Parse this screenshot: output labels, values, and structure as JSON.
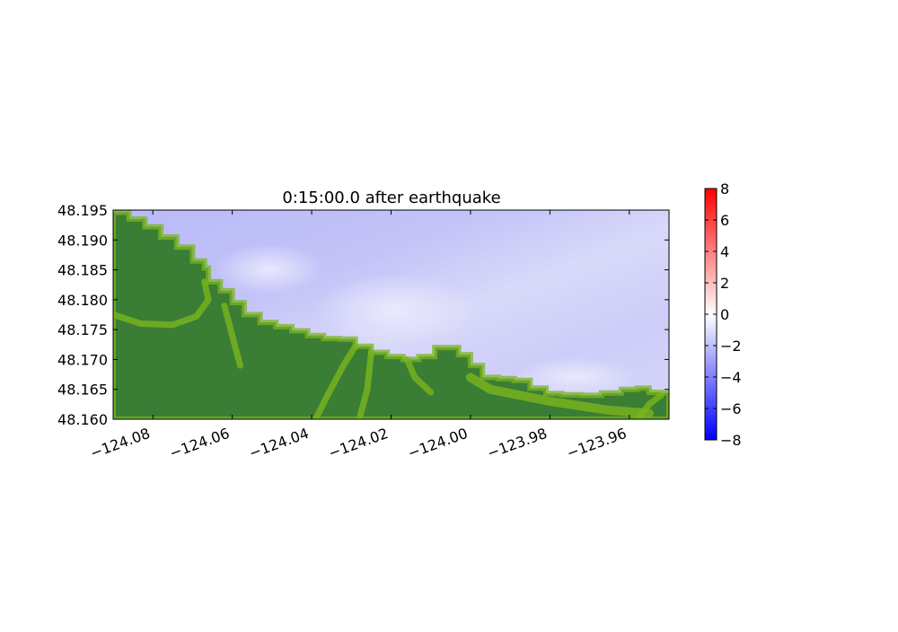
{
  "chart_data": {
    "type": "heatmap",
    "title": "0:15:00.0 after earthquake",
    "xlabel": "",
    "ylabel": "",
    "xlim": [
      -124.09,
      -123.95
    ],
    "ylim": [
      48.16,
      48.195
    ],
    "x_ticks": [
      -124.08,
      -124.06,
      -124.04,
      -124.02,
      -124.0,
      -123.98,
      -123.96
    ],
    "x_tick_labels": [
      "−124.08",
      "−124.06",
      "−124.04",
      "−124.02",
      "−124.00",
      "−123.98",
      "−123.96"
    ],
    "y_ticks": [
      48.16,
      48.165,
      48.17,
      48.175,
      48.18,
      48.185,
      48.19,
      48.195
    ],
    "y_tick_labels": [
      "48.160",
      "48.165",
      "48.170",
      "48.175",
      "48.180",
      "48.185",
      "48.190",
      "48.195"
    ],
    "colorbar": {
      "range": [
        -8,
        8
      ],
      "ticks": [
        8,
        6,
        4,
        2,
        0,
        -2,
        -4,
        -6,
        -8
      ],
      "tick_labels": [
        "8",
        "6",
        "4",
        "2",
        "0",
        "−2",
        "−4",
        "−6",
        "−8"
      ],
      "colors": [
        "#ff0000",
        "#ffffff",
        "#0000ff"
      ]
    },
    "coastline": [
      [
        -124.09,
        48.1946
      ],
      [
        -124.086,
        48.1935
      ],
      [
        -124.082,
        48.1922
      ],
      [
        -124.078,
        48.1905
      ],
      [
        -124.074,
        48.1888
      ],
      [
        -124.07,
        48.1865
      ],
      [
        -124.067,
        48.1853
      ],
      [
        -124.066,
        48.183
      ],
      [
        -124.063,
        48.1815
      ],
      [
        -124.06,
        48.1795
      ],
      [
        -124.057,
        48.1775
      ],
      [
        -124.053,
        48.1762
      ],
      [
        -124.049,
        48.1755
      ],
      [
        -124.045,
        48.1748
      ],
      [
        -124.041,
        48.174
      ],
      [
        -124.037,
        48.1735
      ],
      [
        -124.033,
        48.1734
      ],
      [
        -124.029,
        48.1722
      ],
      [
        -124.025,
        48.1712
      ],
      [
        -124.021,
        48.1705
      ],
      [
        -124.017,
        48.17
      ],
      [
        -124.013,
        48.1705
      ],
      [
        -124.009,
        48.172
      ],
      [
        -124.006,
        48.172
      ],
      [
        -124.003,
        48.1708
      ],
      [
        -124.0,
        48.169
      ],
      [
        -123.997,
        48.167
      ],
      [
        -123.993,
        48.1668
      ],
      [
        -123.989,
        48.1665
      ],
      [
        -123.985,
        48.1652
      ],
      [
        -123.981,
        48.1643
      ],
      [
        -123.977,
        48.1641
      ],
      [
        -123.972,
        48.164
      ],
      [
        -123.967,
        48.1644
      ],
      [
        -123.962,
        48.165
      ],
      [
        -123.958,
        48.1652
      ],
      [
        -123.955,
        48.1645
      ],
      [
        -123.952,
        48.1644
      ],
      [
        -123.95,
        48.1644
      ]
    ],
    "water_surface_range": [
      -4,
      0
    ],
    "land_colors": [
      "#3a7d34",
      "#7ab51d"
    ]
  }
}
